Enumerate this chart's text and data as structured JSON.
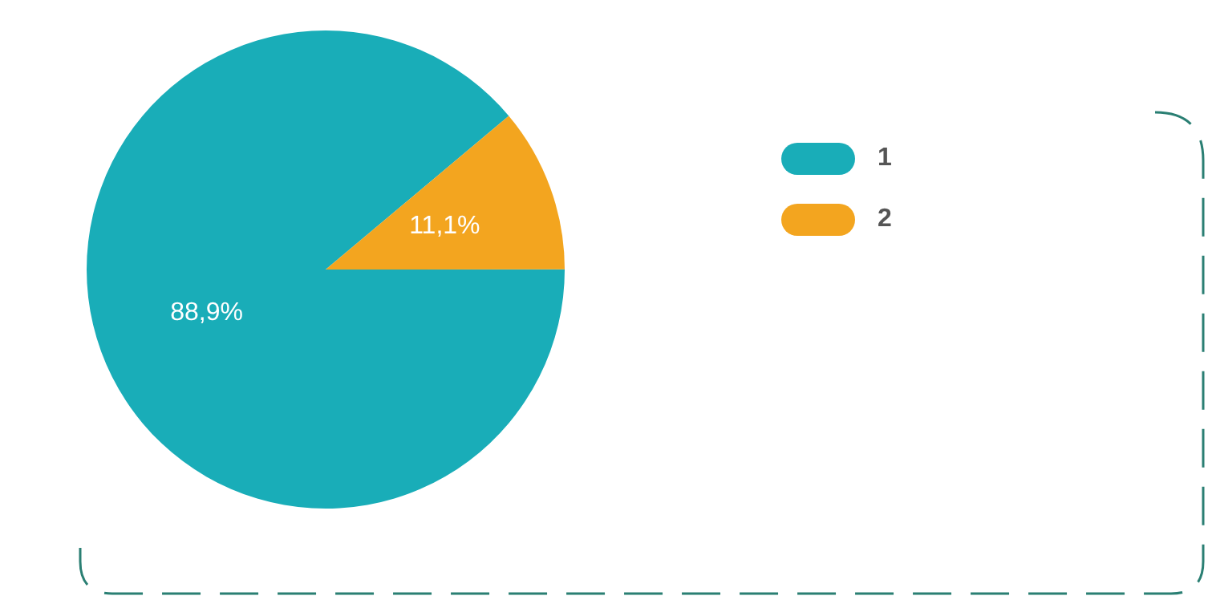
{
  "chart_data": {
    "type": "pie",
    "categories": [
      "1",
      "2"
    ],
    "values": [
      88.9,
      11.1
    ],
    "colors": [
      "#19adb8",
      "#f3a51f"
    ],
    "value_labels": [
      "88,9%",
      "11,1%"
    ],
    "legend": "right"
  }
}
